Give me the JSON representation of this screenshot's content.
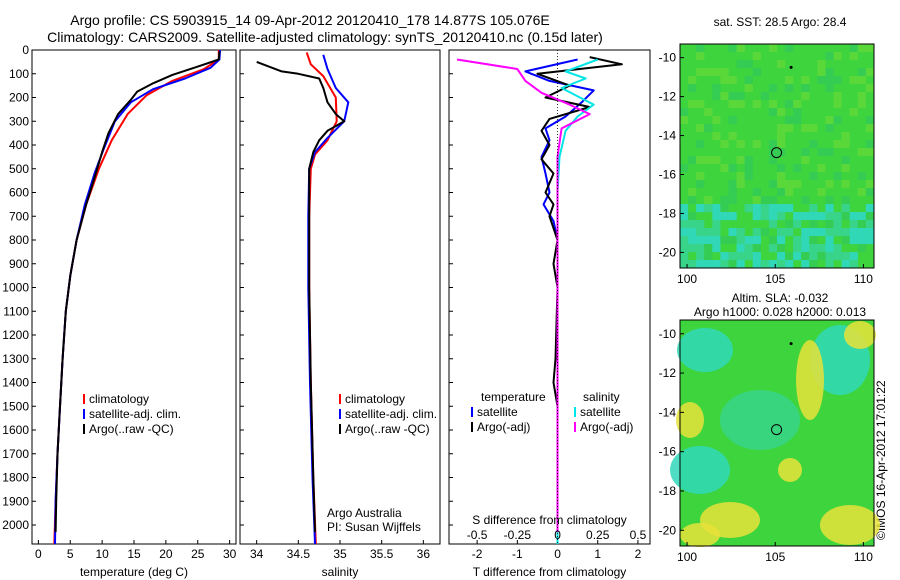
{
  "header": {
    "line1": "Argo profile: CS 5903915_14 09-Apr-2012 20120410_178 14.877S 105.076E",
    "line2": "Climatology: CARS2009. Satellite-adjusted climatology: synTS_20120410.nc (0.15d later)"
  },
  "maps": {
    "sst_title": "sat. SST: 28.5 Argo: 28.4",
    "sla_title1": "Altim. SLA: -0.032",
    "sla_title2": "Argo h1000: 0.028 h2000: 0.013",
    "x_ticks": [
      "100",
      "105",
      "110"
    ],
    "y_ticks": [
      "-10",
      "-12",
      "-14",
      "-16",
      "-18",
      "-20"
    ],
    "colors": {
      "green": "#3ed43e",
      "cyan": "#30d8b8",
      "yellow": "#e8e23a"
    }
  },
  "stamp": "©IMOS 16-Apr-2012 17:01:22",
  "text": {
    "argo_australia": "Argo Australia",
    "pi": "PI: Susan Wijffels",
    "s_diff_label": "S difference from climatology",
    "t_diff_label": "T difference from climatology",
    "legend_temperature": "temperature",
    "legend_salinity": "salinity"
  },
  "chart_data": [
    {
      "type": "line",
      "panel": "temperature",
      "xlabel": "temperature (deg C)",
      "xlim": [
        -1,
        31
      ],
      "ylim": [
        2080,
        0
      ],
      "x_ticks": [
        0,
        5,
        10,
        15,
        20,
        25,
        30
      ],
      "y_ticks": [
        0,
        100,
        200,
        300,
        400,
        500,
        600,
        700,
        800,
        900,
        1000,
        1100,
        1200,
        1300,
        1400,
        1500,
        1600,
        1700,
        1800,
        1900,
        2000
      ],
      "legend": [
        "climatology",
        "satellite-adj. clim.",
        "Argo(..raw -QC)"
      ],
      "series": [
        {
          "name": "climatology",
          "color": "#ff0000",
          "points": [
            [
              28.3,
              0
            ],
            [
              28.3,
              40
            ],
            [
              26,
              80
            ],
            [
              21,
              130
            ],
            [
              17,
              190
            ],
            [
              14,
              270
            ],
            [
              11.5,
              380
            ],
            [
              9.5,
              500
            ],
            [
              7.5,
              650
            ],
            [
              6,
              800
            ],
            [
              5,
              950
            ],
            [
              4.3,
              1100
            ],
            [
              3.8,
              1300
            ],
            [
              3.4,
              1500
            ],
            [
              3.0,
              1700
            ],
            [
              2.7,
              1900
            ],
            [
              2.5,
              2080
            ]
          ]
        },
        {
          "name": "satellite-adj. clim.",
          "color": "#0000ff",
          "points": [
            [
              28.5,
              0
            ],
            [
              28.4,
              40
            ],
            [
              27,
              75
            ],
            [
              23,
              120
            ],
            [
              18,
              165
            ],
            [
              14.5,
              220
            ],
            [
              12,
              300
            ],
            [
              10.2,
              420
            ],
            [
              8.8,
              520
            ],
            [
              7.3,
              650
            ],
            [
              6,
              800
            ],
            [
              5,
              950
            ],
            [
              4.3,
              1100
            ],
            [
              3.8,
              1300
            ],
            [
              3.4,
              1500
            ],
            [
              3.0,
              1700
            ],
            [
              2.7,
              1900
            ],
            [
              2.6,
              2080
            ]
          ]
        },
        {
          "name": "Argo(..raw -QC)",
          "color": "#000000",
          "points": [
            [
              28.4,
              5
            ],
            [
              28.3,
              40
            ],
            [
              25,
              70
            ],
            [
              21,
              105
            ],
            [
              18,
              140
            ],
            [
              15.5,
              175
            ],
            [
              14.5,
              210
            ],
            [
              12.5,
              270
            ],
            [
              11,
              350
            ],
            [
              10,
              430
            ],
            [
              9,
              520
            ],
            [
              7.5,
              650
            ],
            [
              6,
              800
            ],
            [
              5,
              950
            ],
            [
              4.3,
              1100
            ],
            [
              3.8,
              1300
            ],
            [
              3.4,
              1500
            ],
            [
              3.0,
              1700
            ],
            [
              2.8,
              1900
            ],
            [
              2.7,
              2030
            ]
          ]
        }
      ]
    },
    {
      "type": "line",
      "panel": "salinity",
      "xlabel": "salinity",
      "xlim": [
        33.8,
        36.2
      ],
      "ylim": [
        2080,
        0
      ],
      "x_ticks": [
        34,
        34.5,
        35,
        35.5,
        36
      ],
      "legend": [
        "climatology",
        "satellite-adj. clim.",
        "Argo(..raw -QC)"
      ],
      "series": [
        {
          "name": "climatology",
          "color": "#ff0000",
          "points": [
            [
              34.6,
              10
            ],
            [
              34.65,
              60
            ],
            [
              34.8,
              110
            ],
            [
              34.95,
              200
            ],
            [
              34.96,
              300
            ],
            [
              34.85,
              380
            ],
            [
              34.7,
              440
            ],
            [
              34.65,
              500
            ],
            [
              34.63,
              700
            ],
            [
              34.63,
              1000
            ],
            [
              34.65,
              1400
            ],
            [
              34.68,
              1800
            ],
            [
              34.71,
              2080
            ]
          ]
        },
        {
          "name": "satellite-adj. clim.",
          "color": "#0000ff",
          "points": [
            [
              34.8,
              20
            ],
            [
              34.85,
              80
            ],
            [
              34.95,
              160
            ],
            [
              35.1,
              220
            ],
            [
              35.05,
              300
            ],
            [
              34.85,
              370
            ],
            [
              34.7,
              430
            ],
            [
              34.63,
              500
            ],
            [
              34.62,
              700
            ],
            [
              34.62,
              1000
            ],
            [
              34.64,
              1400
            ],
            [
              34.67,
              1800
            ],
            [
              34.7,
              2080
            ]
          ]
        },
        {
          "name": "Argo(..raw -QC)",
          "color": "#000000",
          "points": [
            [
              34.0,
              50
            ],
            [
              34.3,
              90
            ],
            [
              34.5,
              100
            ],
            [
              34.75,
              120
            ],
            [
              34.8,
              160
            ],
            [
              34.85,
              220
            ],
            [
              34.95,
              270
            ],
            [
              35.05,
              300
            ],
            [
              34.85,
              340
            ],
            [
              34.75,
              380
            ],
            [
              34.68,
              430
            ],
            [
              34.63,
              500
            ],
            [
              34.63,
              700
            ],
            [
              34.63,
              1000
            ],
            [
              34.65,
              1400
            ],
            [
              34.68,
              1800
            ],
            [
              34.7,
              2030
            ]
          ]
        }
      ]
    },
    {
      "type": "line",
      "panel": "differences",
      "xlabel": "T difference from climatology",
      "xlabel_top": "S difference from climatology",
      "xlim": [
        -2.7,
        2.3
      ],
      "ylim": [
        2080,
        0
      ],
      "x_ticks": [
        -2,
        -1,
        0,
        1,
        2
      ],
      "x_ticks_top": [
        -0.5,
        -0.25,
        0,
        0.25,
        0.5
      ],
      "legend_temperature": [
        "satellite",
        "Argo(-adj)"
      ],
      "legend_salinity": [
        "satellite",
        "Argo(-adj)"
      ],
      "series": [
        {
          "name": "temperature satellite",
          "color": "#0000ff",
          "points": [
            [
              0.5,
              40
            ],
            [
              -0.8,
              90
            ],
            [
              -0.2,
              130
            ],
            [
              0.9,
              170
            ],
            [
              0.6,
              220
            ],
            [
              0.2,
              280
            ],
            [
              -0.3,
              330
            ],
            [
              -0.2,
              380
            ],
            [
              -0.4,
              450
            ],
            [
              -0.3,
              520
            ],
            [
              -0.2,
              600
            ],
            [
              -0.35,
              650
            ],
            [
              -0.1,
              720
            ],
            [
              0,
              800
            ],
            [
              0,
              1000
            ],
            [
              0,
              1500
            ],
            [
              0,
              2080
            ]
          ]
        },
        {
          "name": "temperature Argo(-adj)",
          "color": "#000000",
          "points": [
            [
              0.8,
              30
            ],
            [
              1.6,
              60
            ],
            [
              -0.5,
              100
            ],
            [
              0.3,
              150
            ],
            [
              -0.3,
              200
            ],
            [
              0.8,
              240
            ],
            [
              -0.2,
              290
            ],
            [
              -0.4,
              340
            ],
            [
              -0.2,
              400
            ],
            [
              -0.4,
              460
            ],
            [
              -0.1,
              520
            ],
            [
              -0.3,
              600
            ],
            [
              -0.1,
              650
            ],
            [
              -0.2,
              700
            ],
            [
              0,
              800
            ],
            [
              -0.1,
              900
            ],
            [
              0,
              1000
            ],
            [
              -0.05,
              1300
            ],
            [
              -0.1,
              1400
            ],
            [
              0,
              1500
            ],
            [
              0,
              2030
            ]
          ]
        },
        {
          "name": "salinity satellite",
          "color": "#00e5e5",
          "points": [
            [
              1.0,
              40
            ],
            [
              0.2,
              90
            ],
            [
              0.7,
              120
            ],
            [
              0.1,
              160
            ],
            [
              0.9,
              230
            ],
            [
              0.5,
              280
            ],
            [
              0.2,
              340
            ],
            [
              0.05,
              450
            ],
            [
              0,
              600
            ],
            [
              0,
              2080
            ]
          ]
        },
        {
          "name": "salinity Argo(-adj)",
          "color": "#ff00ff",
          "points": [
            [
              -2.5,
              40
            ],
            [
              -1.0,
              80
            ],
            [
              -0.8,
              130
            ],
            [
              -0.4,
              180
            ],
            [
              0.3,
              230
            ],
            [
              0.8,
              270
            ],
            [
              0.1,
              330
            ],
            [
              0,
              450
            ],
            [
              0,
              600
            ],
            [
              0,
              2030
            ]
          ]
        }
      ]
    }
  ]
}
